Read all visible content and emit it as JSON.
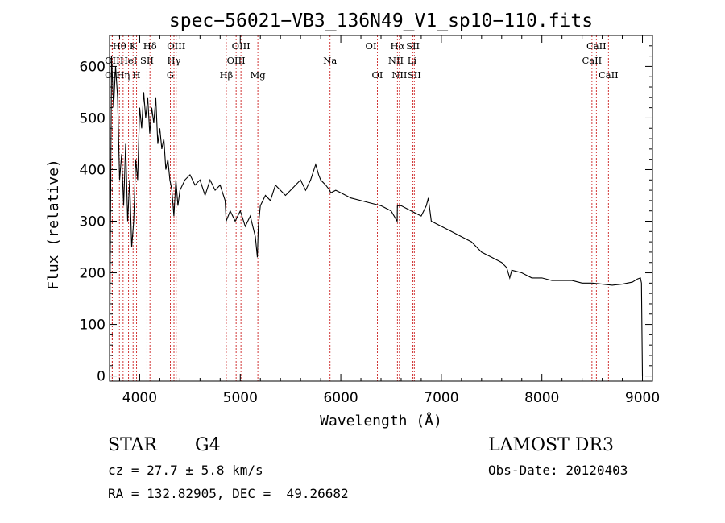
{
  "chart_data": {
    "type": "line",
    "title": "spec−56021−VB3_136N49_V1_sp10−110.fits",
    "xlabel": "Wavelength (Å)",
    "ylabel": "Flux (relative)",
    "xlim": [
      3700,
      9100
    ],
    "ylim": [
      -10,
      660
    ],
    "xticks": [
      4000,
      5000,
      6000,
      7000,
      8000,
      9000
    ],
    "yticks": [
      0,
      100,
      200,
      300,
      400,
      500,
      600
    ],
    "spectrum": {
      "name": "flux",
      "x": [
        3700,
        3720,
        3740,
        3760,
        3780,
        3800,
        3820,
        3840,
        3860,
        3880,
        3900,
        3920,
        3940,
        3960,
        3980,
        4000,
        4020,
        4040,
        4060,
        4080,
        4100,
        4120,
        4140,
        4160,
        4180,
        4200,
        4220,
        4240,
        4260,
        4280,
        4300,
        4320,
        4340,
        4360,
        4380,
        4400,
        4450,
        4500,
        4550,
        4600,
        4650,
        4700,
        4750,
        4800,
        4850,
        4860,
        4900,
        4950,
        5000,
        5050,
        5100,
        5150,
        5170,
        5180,
        5200,
        5250,
        5300,
        5350,
        5400,
        5450,
        5500,
        5550,
        5600,
        5650,
        5700,
        5750,
        5780,
        5800,
        5850,
        5890,
        5900,
        5950,
        6000,
        6100,
        6200,
        6300,
        6400,
        6500,
        6560,
        6563,
        6600,
        6700,
        6800,
        6850,
        6870,
        6900,
        7000,
        7100,
        7200,
        7300,
        7400,
        7500,
        7600,
        7650,
        7680,
        7700,
        7800,
        7900,
        8000,
        8100,
        8200,
        8300,
        8400,
        8500,
        8600,
        8700,
        8800,
        8900,
        8950,
        8980,
        8990,
        9000
      ],
      "y": [
        10,
        620,
        520,
        600,
        540,
        380,
        430,
        330,
        450,
        300,
        380,
        250,
        300,
        420,
        380,
        520,
        480,
        550,
        500,
        540,
        470,
        520,
        490,
        540,
        450,
        480,
        440,
        460,
        400,
        420,
        380,
        360,
        310,
        380,
        330,
        360,
        380,
        390,
        370,
        380,
        350,
        380,
        360,
        370,
        340,
        300,
        320,
        300,
        320,
        290,
        310,
        270,
        230,
        290,
        330,
        350,
        340,
        370,
        360,
        350,
        360,
        370,
        380,
        360,
        380,
        410,
        390,
        380,
        370,
        360,
        355,
        360,
        355,
        345,
        340,
        335,
        330,
        320,
        300,
        330,
        330,
        320,
        310,
        330,
        345,
        300,
        290,
        280,
        270,
        260,
        240,
        230,
        220,
        210,
        190,
        205,
        200,
        190,
        190,
        185,
        185,
        185,
        180,
        180,
        178,
        176,
        178,
        182,
        188,
        190,
        180,
        0
      ]
    },
    "lines": [
      {
        "label": "Hθ",
        "wave": 3798,
        "row": 0
      },
      {
        "label": "K",
        "wave": 3934,
        "row": 0
      },
      {
        "label": "Hδ",
        "wave": 4102,
        "row": 0
      },
      {
        "label": "OIII",
        "wave": 4363,
        "row": 0
      },
      {
        "label": "OIII",
        "wave": 5007,
        "row": 0
      },
      {
        "label": "OI",
        "wave": 6300,
        "row": 0
      },
      {
        "label": "Hα",
        "wave": 6563,
        "row": 0
      },
      {
        "label": "SII",
        "wave": 6717,
        "row": 0
      },
      {
        "label": "CaII",
        "wave": 8542,
        "row": 0
      },
      {
        "label": "OII",
        "wave": 3727,
        "row": 1
      },
      {
        "label": "HeI",
        "wave": 3889,
        "row": 1
      },
      {
        "label": "SII",
        "wave": 4072,
        "row": 1
      },
      {
        "label": "Hγ",
        "wave": 4341,
        "row": 1
      },
      {
        "label": "OIII",
        "wave": 4959,
        "row": 1
      },
      {
        "label": "Na",
        "wave": 5893,
        "row": 1
      },
      {
        "label": "NII",
        "wave": 6548,
        "row": 1
      },
      {
        "label": "Li",
        "wave": 6708,
        "row": 1
      },
      {
        "label": "CaII",
        "wave": 8498,
        "row": 1
      },
      {
        "label": "OII",
        "wave": 3727,
        "row": 2
      },
      {
        "label": "Hη",
        "wave": 3835,
        "row": 2
      },
      {
        "label": "H",
        "wave": 3969,
        "row": 2
      },
      {
        "label": "G",
        "wave": 4305,
        "row": 2
      },
      {
        "label": "Hβ",
        "wave": 4861,
        "row": 2
      },
      {
        "label": "Mg",
        "wave": 5175,
        "row": 2
      },
      {
        "label": "OI",
        "wave": 6364,
        "row": 2
      },
      {
        "label": "NII",
        "wave": 6583,
        "row": 2
      },
      {
        "label": "SII",
        "wave": 6731,
        "row": 2
      },
      {
        "label": "CaII",
        "wave": 8662,
        "row": 2
      }
    ]
  },
  "footer": {
    "class_label": "STAR",
    "subclass": "G4",
    "cz": "cz = 27.7 ± 5.8 km/s",
    "radec": "RA = 132.82905, DEC =  49.26682",
    "survey": "LAMOST DR3",
    "obs_date": "Obs-Date: 20120403"
  }
}
